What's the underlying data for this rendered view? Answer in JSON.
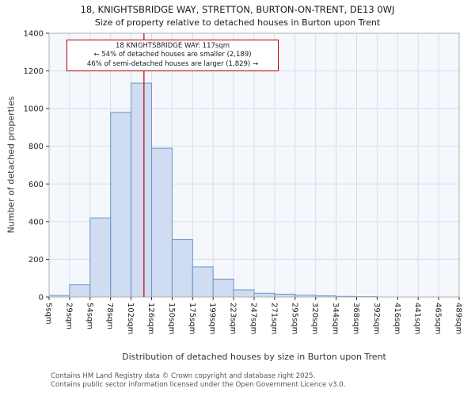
{
  "title": "18, KNIGHTSBRIDGE WAY, STRETTON, BURTON-ON-TRENT, DE13 0WJ",
  "subtitle": "Size of property relative to detached houses in Burton upon Trent",
  "annotation": {
    "line1": "18 KNIGHTSBRIDGE WAY: 117sqm",
    "line2": "← 54% of detached houses are smaller (2,189)",
    "line3": "46% of semi-detached houses are larger (1,829) →"
  },
  "footer": {
    "line1": "Contains HM Land Registry data © Crown copyright and database right 2025.",
    "line2": "Contains public sector information licensed under the Open Government Licence v3.0."
  },
  "chart_data": {
    "type": "bar",
    "title": "Size of property relative to detached houses in Burton upon Trent",
    "xlabel": "Distribution of detached houses by size in Burton upon Trent",
    "ylabel": "Number of detached properties",
    "ylim": [
      0,
      1400
    ],
    "yticks": [
      0,
      200,
      400,
      600,
      800,
      1000,
      1200,
      1400
    ],
    "x_tick_labels": [
      "5sqm",
      "29sqm",
      "54sqm",
      "78sqm",
      "102sqm",
      "126sqm",
      "150sqm",
      "175sqm",
      "199sqm",
      "223sqm",
      "247sqm",
      "271sqm",
      "295sqm",
      "320sqm",
      "344sqm",
      "368sqm",
      "392sqm",
      "416sqm",
      "441sqm",
      "465sqm",
      "489sqm"
    ],
    "bin_edges_sqm": [
      5,
      29,
      54,
      78,
      102,
      126,
      150,
      175,
      199,
      223,
      247,
      271,
      295,
      320,
      344,
      368,
      392,
      416,
      441,
      465,
      489
    ],
    "values": [
      8,
      65,
      420,
      980,
      1135,
      790,
      305,
      160,
      95,
      38,
      20,
      15,
      10,
      6,
      3,
      2,
      0,
      0,
      0,
      0
    ],
    "marker_value_sqm": 117,
    "legend": null,
    "grid": true,
    "colors": {
      "bar_fill": "#cfdcf1",
      "bar_stroke": "#6d94c9",
      "marker_line": "#bb0000",
      "grid_line": "#d8dde8",
      "plot_bg": "#f4f7fc",
      "spine": "#b0b0b0"
    }
  }
}
